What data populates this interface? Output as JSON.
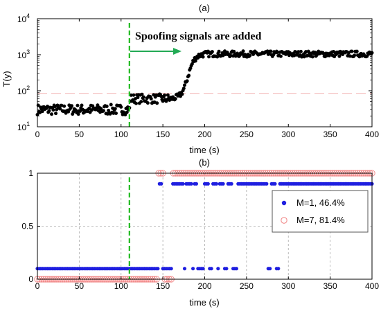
{
  "chart_data": [
    {
      "type": "scatter",
      "title": "(a)",
      "xlabel": "time (s)",
      "ylabel": "T(y)",
      "xlim": [
        0,
        400
      ],
      "ylim": [
        10,
        10000
      ],
      "yscale": "log",
      "xticks": [
        "0",
        "50",
        "100",
        "150",
        "200",
        "250",
        "300",
        "350",
        "400"
      ],
      "yticks": [
        {
          "value": 10,
          "base": "10",
          "exp": "1"
        },
        {
          "value": 100,
          "base": "10",
          "exp": "2"
        },
        {
          "value": 1000,
          "base": "10",
          "exp": "3"
        },
        {
          "value": 10000,
          "base": "10",
          "exp": "4"
        }
      ],
      "grid": false,
      "threshold": 85,
      "spoof_time": 110,
      "annotation": "Spoofing signals are added",
      "colors": {
        "points": "#000000",
        "threshold": "#f4b8b8",
        "spoof_line": "#22bb22",
        "arrow": "#22aa55"
      },
      "segments": [
        {
          "x_start": 0,
          "x_end": 110,
          "level": 30
        },
        {
          "x_start": 110,
          "x_end": 160,
          "level": 60
        },
        {
          "x_start": 160,
          "x_end": 200,
          "level": 400
        },
        {
          "x_start": 200,
          "x_end": 400,
          "level": 1050
        }
      ]
    },
    {
      "type": "scatter",
      "title": "(b)",
      "xlabel": "time (s)",
      "ylabel": "",
      "xlim": [
        0,
        400
      ],
      "ylim": [
        0,
        1
      ],
      "xticks": [
        "0",
        "50",
        "100",
        "150",
        "200",
        "250",
        "300",
        "350",
        "400"
      ],
      "yticks": [
        "0",
        "0.5",
        "1"
      ],
      "grid": true,
      "spoof_time": 110,
      "legend_position": "right",
      "series": [
        {
          "name": "M=1, 46.4%",
          "marker": "filled-dot",
          "color": "#1f1fe0",
          "display_low": 0.1,
          "display_high": 0.9,
          "high_intervals": [
            [
              145,
              148
            ],
            [
              162,
              175
            ],
            [
              178,
              185
            ],
            [
              187,
              190
            ],
            [
              200,
              205
            ],
            [
              210,
              214
            ],
            [
              218,
              222
            ],
            [
              228,
              232
            ],
            [
              240,
              275
            ],
            [
              280,
              284
            ],
            [
              290,
              400
            ]
          ]
        },
        {
          "name": "M=7, 81.4%",
          "marker": "open-circle",
          "color": "#f08080",
          "display_low": 0,
          "display_high": 1,
          "high_intervals": [
            [
              145,
              152
            ],
            [
              162,
              400
            ]
          ]
        }
      ]
    }
  ]
}
